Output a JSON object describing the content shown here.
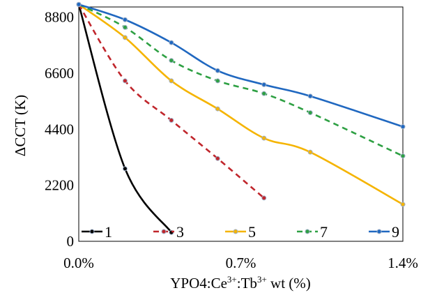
{
  "chart_data": {
    "type": "line",
    "xlabel_parts": [
      "YPO4:Ce",
      "3+",
      ":Tb",
      "3+",
      " wt (%)"
    ],
    "ylabel": "ΔCCT (K)",
    "xlim": [
      0,
      1.4
    ],
    "ylim": [
      0,
      9200
    ],
    "x_tick_values": [
      0,
      0.7,
      1.4
    ],
    "x_tick_labels": [
      "0.0%",
      "0.7%",
      "1.4%"
    ],
    "y_tick_values": [
      0,
      2200,
      4400,
      6600,
      8800
    ],
    "y_tick_labels": [
      "0",
      "2200",
      "4400",
      "6600",
      "8800"
    ],
    "grid": false,
    "legend_position": "bottom",
    "series": [
      {
        "name": "1",
        "color": "#000000",
        "style": "solid",
        "x": [
          0,
          0.2,
          0.4
        ],
        "y": [
          9300,
          2850,
          350
        ]
      },
      {
        "name": "3",
        "color": "#c0262c",
        "style": "dashed",
        "x": [
          0,
          0.2,
          0.4,
          0.6,
          0.8
        ],
        "y": [
          9300,
          6300,
          4750,
          3250,
          1700
        ]
      },
      {
        "name": "5",
        "color": "#f5b400",
        "style": "solid",
        "x": [
          0,
          0.2,
          0.4,
          0.6,
          0.8,
          1.0,
          1.4
        ],
        "y": [
          9300,
          8000,
          6300,
          5200,
          4050,
          3500,
          1450
        ]
      },
      {
        "name": "7",
        "color": "#2ea043",
        "style": "dashed",
        "x": [
          0,
          0.2,
          0.4,
          0.6,
          0.8,
          1.0,
          1.4
        ],
        "y": [
          9300,
          8400,
          7100,
          6300,
          5800,
          5050,
          3350
        ]
      },
      {
        "name": "9",
        "color": "#2068c0",
        "style": "solid",
        "x": [
          0,
          0.2,
          0.4,
          0.6,
          0.8,
          1.0,
          1.4
        ],
        "y": [
          9300,
          8700,
          7800,
          6700,
          6150,
          5700,
          4500
        ]
      }
    ]
  }
}
